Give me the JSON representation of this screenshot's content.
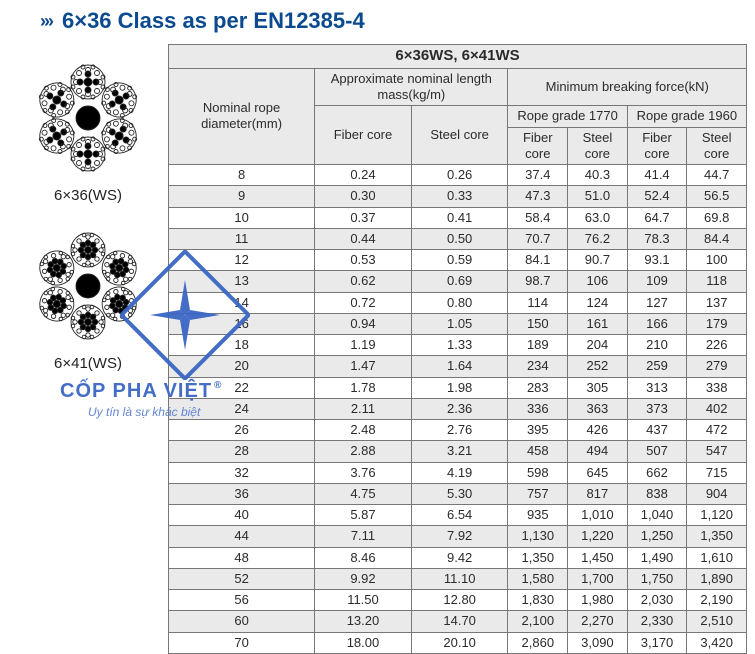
{
  "header": {
    "chevrons": "›››",
    "title": "6×36 Class as per EN12385-4"
  },
  "left": {
    "label1": "6×36(WS)",
    "label2": "6×41(WS)"
  },
  "table": {
    "top_title": "6×36WS, 6×41WS",
    "h_diameter": "Nominal rope diameter(mm)",
    "h_mass": "Approximate nominal length mass(kg/m)",
    "h_force": "Minimum breaking force(kN)",
    "h_fiber": "Fiber core",
    "h_steel": "Steel core",
    "h_grade1770": "Rope grade 1770",
    "h_grade1960": "Rope grade 1960",
    "rows": [
      {
        "d": "8",
        "mf": "0.24",
        "ms": "0.26",
        "f1": "37.4",
        "s1": "40.3",
        "f2": "41.4",
        "s2": "44.7"
      },
      {
        "d": "9",
        "mf": "0.30",
        "ms": "0.33",
        "f1": "47.3",
        "s1": "51.0",
        "f2": "52.4",
        "s2": "56.5"
      },
      {
        "d": "10",
        "mf": "0.37",
        "ms": "0.41",
        "f1": "58.4",
        "s1": "63.0",
        "f2": "64.7",
        "s2": "69.8"
      },
      {
        "d": "11",
        "mf": "0.44",
        "ms": "0.50",
        "f1": "70.7",
        "s1": "76.2",
        "f2": "78.3",
        "s2": "84.4"
      },
      {
        "d": "12",
        "mf": "0.53",
        "ms": "0.59",
        "f1": "84.1",
        "s1": "90.7",
        "f2": "93.1",
        "s2": "100"
      },
      {
        "d": "13",
        "mf": "0.62",
        "ms": "0.69",
        "f1": "98.7",
        "s1": "106",
        "f2": "109",
        "s2": "118"
      },
      {
        "d": "14",
        "mf": "0.72",
        "ms": "0.80",
        "f1": "114",
        "s1": "124",
        "f2": "127",
        "s2": "137"
      },
      {
        "d": "16",
        "mf": "0.94",
        "ms": "1.05",
        "f1": "150",
        "s1": "161",
        "f2": "166",
        "s2": "179"
      },
      {
        "d": "18",
        "mf": "1.19",
        "ms": "1.33",
        "f1": "189",
        "s1": "204",
        "f2": "210",
        "s2": "226"
      },
      {
        "d": "20",
        "mf": "1.47",
        "ms": "1.64",
        "f1": "234",
        "s1": "252",
        "f2": "259",
        "s2": "279"
      },
      {
        "d": "22",
        "mf": "1.78",
        "ms": "1.98",
        "f1": "283",
        "s1": "305",
        "f2": "313",
        "s2": "338"
      },
      {
        "d": "24",
        "mf": "2.11",
        "ms": "2.36",
        "f1": "336",
        "s1": "363",
        "f2": "373",
        "s2": "402"
      },
      {
        "d": "26",
        "mf": "2.48",
        "ms": "2.76",
        "f1": "395",
        "s1": "426",
        "f2": "437",
        "s2": "472"
      },
      {
        "d": "28",
        "mf": "2.88",
        "ms": "3.21",
        "f1": "458",
        "s1": "494",
        "f2": "507",
        "s2": "547"
      },
      {
        "d": "32",
        "mf": "3.76",
        "ms": "4.19",
        "f1": "598",
        "s1": "645",
        "f2": "662",
        "s2": "715"
      },
      {
        "d": "36",
        "mf": "4.75",
        "ms": "5.30",
        "f1": "757",
        "s1": "817",
        "f2": "838",
        "s2": "904"
      },
      {
        "d": "40",
        "mf": "5.87",
        "ms": "6.54",
        "f1": "935",
        "s1": "1,010",
        "f2": "1,040",
        "s2": "1,120"
      },
      {
        "d": "44",
        "mf": "7.11",
        "ms": "7.92",
        "f1": "1,130",
        "s1": "1,220",
        "f2": "1,250",
        "s2": "1,350"
      },
      {
        "d": "48",
        "mf": "8.46",
        "ms": "9.42",
        "f1": "1,350",
        "s1": "1,450",
        "f2": "1,490",
        "s2": "1,610"
      },
      {
        "d": "52",
        "mf": "9.92",
        "ms": "11.10",
        "f1": "1,580",
        "s1": "1,700",
        "f2": "1,750",
        "s2": "1,890"
      },
      {
        "d": "56",
        "mf": "11.50",
        "ms": "12.80",
        "f1": "1,830",
        "s1": "1,980",
        "f2": "2,030",
        "s2": "2,190"
      },
      {
        "d": "60",
        "mf": "13.20",
        "ms": "14.70",
        "f1": "2,100",
        "s1": "2,270",
        "f2": "2,330",
        "s2": "2,510"
      },
      {
        "d": "70",
        "mf": "18.00",
        "ms": "20.10",
        "f1": "2,860",
        "s1": "3,090",
        "f2": "3,170",
        "s2": "3,420"
      }
    ]
  },
  "watermark": {
    "brand": "CỐP PHA VIỆT",
    "reg": "®",
    "slogan": "Uy tín là sự khác biệt"
  },
  "style": {
    "header_color": "#0b4a8f",
    "header_bg": "#eaeaea",
    "border_color": "#777777",
    "watermark_color": "#3a66c4"
  }
}
